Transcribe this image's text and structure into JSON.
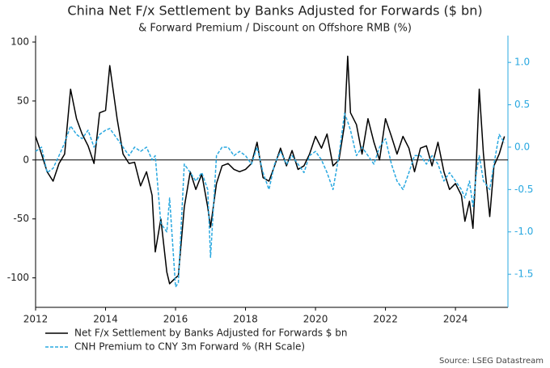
{
  "chart_data": {
    "type": "line",
    "title": "China Net F/x Settlement by Banks Adjusted for Forwards ($ bn)",
    "subtitle": "& Forward Premium / Discount on Offshore RMB (%)",
    "source": "Source: LSEG Datastream",
    "x": [
      2012.0,
      2012.17,
      2012.33,
      2012.5,
      2012.67,
      2012.83,
      2013.0,
      2013.17,
      2013.33,
      2013.5,
      2013.67,
      2013.83,
      2014.0,
      2014.12,
      2014.33,
      2014.5,
      2014.67,
      2014.83,
      2015.0,
      2015.17,
      2015.33,
      2015.42,
      2015.58,
      2015.75,
      2015.83,
      2016.0,
      2016.08,
      2016.25,
      2016.42,
      2016.58,
      2016.75,
      2016.92,
      2017.0,
      2017.17,
      2017.33,
      2017.5,
      2017.67,
      2017.83,
      2018.0,
      2018.17,
      2018.33,
      2018.5,
      2018.67,
      2018.83,
      2019.0,
      2019.17,
      2019.33,
      2019.5,
      2019.67,
      2019.83,
      2020.0,
      2020.17,
      2020.33,
      2020.5,
      2020.67,
      2020.83,
      2020.92,
      2021.0,
      2021.17,
      2021.33,
      2021.5,
      2021.67,
      2021.83,
      2022.0,
      2022.17,
      2022.33,
      2022.5,
      2022.67,
      2022.83,
      2023.0,
      2023.17,
      2023.33,
      2023.5,
      2023.67,
      2023.83,
      2024.0,
      2024.17,
      2024.27,
      2024.4,
      2024.5,
      2024.6,
      2024.68,
      2024.8,
      2024.98,
      2025.1,
      2025.25,
      2025.4
    ],
    "series": [
      {
        "name": "Net F/x Settlement by Banks Adjusted for Forwards $ bn",
        "color": "#000000",
        "dash": "solid",
        "values": [
          20,
          5,
          -10,
          -18,
          -3,
          5,
          60,
          35,
          22,
          12,
          -3,
          40,
          42,
          80,
          35,
          5,
          -3,
          -2,
          -22,
          -10,
          -30,
          -78,
          -50,
          -95,
          -105,
          -100,
          -98,
          -40,
          -10,
          -25,
          -12,
          -40,
          -57,
          -20,
          -5,
          -3,
          -8,
          -10,
          -8,
          -3,
          15,
          -15,
          -18,
          -5,
          10,
          -5,
          8,
          -8,
          -5,
          5,
          20,
          10,
          22,
          -5,
          0,
          30,
          88,
          40,
          30,
          5,
          35,
          15,
          0,
          35,
          20,
          5,
          20,
          10,
          -10,
          10,
          12,
          -5,
          15,
          -10,
          -25,
          -20,
          -30,
          -52,
          -35,
          -58,
          0,
          60,
          5,
          -48,
          -5,
          5,
          20
        ]
      },
      {
        "name": "CNH Premium to CNY 3m Forward % (RH Scale)",
        "color": "#29a8e0",
        "dash": "dashed",
        "axis": "y2",
        "values": [
          -0.05,
          0.0,
          -0.3,
          -0.25,
          -0.1,
          0.05,
          0.25,
          0.15,
          0.1,
          0.2,
          0.0,
          0.15,
          0.2,
          0.22,
          0.1,
          0.0,
          -0.1,
          0.0,
          -0.05,
          0.0,
          -0.15,
          -0.1,
          -0.9,
          -1.0,
          -0.6,
          -1.65,
          -1.6,
          -0.2,
          -0.3,
          -0.4,
          -0.3,
          -0.5,
          -1.3,
          -0.1,
          0.0,
          0.0,
          -0.1,
          -0.05,
          -0.1,
          -0.2,
          0.0,
          -0.3,
          -0.5,
          -0.2,
          -0.05,
          -0.2,
          -0.1,
          -0.2,
          -0.3,
          -0.1,
          -0.05,
          -0.15,
          -0.3,
          -0.5,
          -0.1,
          0.4,
          0.3,
          0.2,
          -0.1,
          0.0,
          -0.1,
          -0.2,
          0.0,
          0.1,
          -0.2,
          -0.4,
          -0.5,
          -0.3,
          -0.1,
          -0.1,
          -0.2,
          -0.1,
          -0.2,
          -0.4,
          -0.3,
          -0.4,
          -0.5,
          -0.6,
          -0.4,
          -0.7,
          -0.3,
          -0.1,
          -0.4,
          -0.5,
          -0.2,
          0.15,
          0.05
        ]
      }
    ],
    "xlim": [
      2012,
      2025.5
    ],
    "xticks": [
      2012,
      2014,
      2016,
      2018,
      2020,
      2022,
      2024
    ],
    "ylim": [
      -125,
      100
    ],
    "yticks": [
      -100,
      -50,
      0,
      50,
      100
    ],
    "y2lim": [
      -1.89,
      1.24
    ],
    "y2ticks": [
      {
        "value": -1.5,
        "label": "-1.5"
      },
      {
        "value": -1,
        "label": "-1.0"
      },
      {
        "value": -0.5,
        "label": "-0.5"
      },
      {
        "value": 0,
        "label": "0.0"
      },
      {
        "value": 0.5,
        "label": "0.5"
      },
      {
        "value": 1,
        "label": "1.0"
      }
    ],
    "zero_line": true,
    "legend": "bottom-left"
  }
}
